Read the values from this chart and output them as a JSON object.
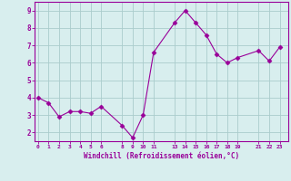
{
  "x": [
    0,
    1,
    2,
    3,
    4,
    5,
    6,
    8,
    9,
    10,
    11,
    13,
    14,
    15,
    16,
    17,
    18,
    19,
    21,
    22,
    23
  ],
  "y": [
    4.0,
    3.7,
    2.9,
    3.2,
    3.2,
    3.1,
    3.5,
    2.4,
    1.7,
    3.0,
    6.6,
    8.3,
    9.0,
    8.3,
    7.6,
    6.5,
    6.0,
    6.3,
    6.7,
    6.1,
    6.9
  ],
  "line_color": "#990099",
  "marker": "D",
  "marker_size": 2.5,
  "bg_color": "#d8eeee",
  "grid_color": "#aacccc",
  "xlabel": "Windchill (Refroidissement éolien,°C)",
  "xlabel_color": "#990099",
  "tick_color": "#990099",
  "yticks": [
    2,
    3,
    4,
    5,
    6,
    7,
    8,
    9
  ],
  "xticks": [
    0,
    1,
    2,
    3,
    4,
    5,
    6,
    8,
    9,
    10,
    11,
    13,
    14,
    15,
    16,
    17,
    18,
    19,
    21,
    22,
    23
  ],
  "xlim": [
    -0.3,
    23.8
  ],
  "ylim": [
    1.5,
    9.5
  ]
}
